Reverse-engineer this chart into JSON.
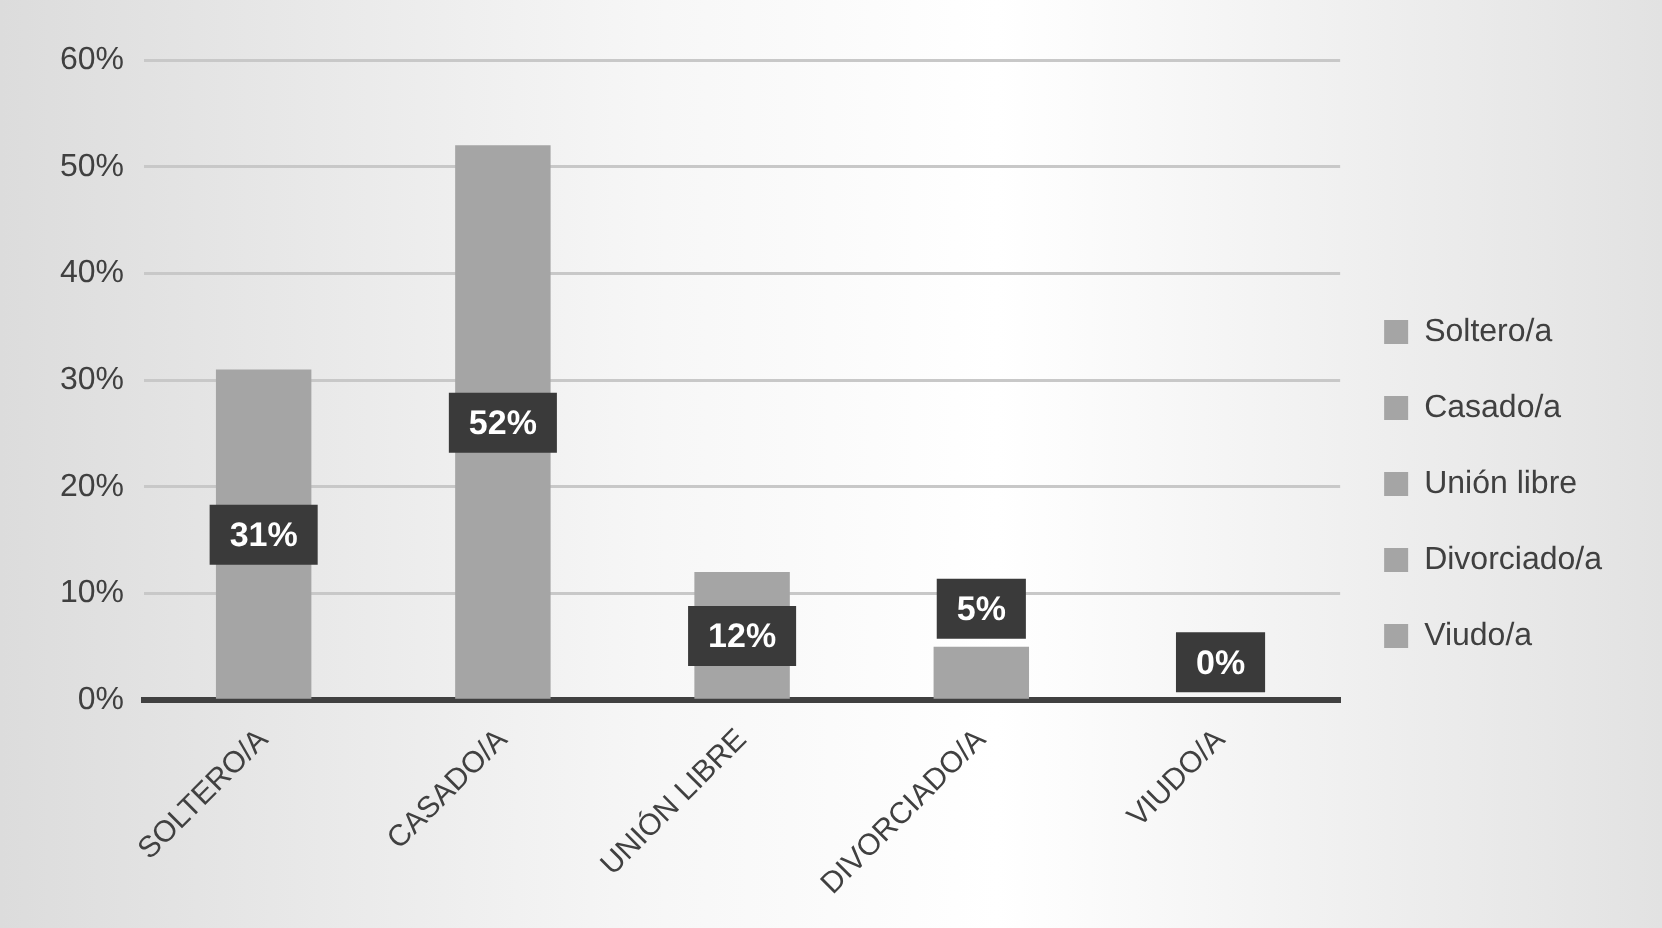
{
  "chart_data": {
    "type": "bar",
    "categories": [
      "SOLTERO/A",
      "CASADO/A",
      "UNIÓN LIBRE",
      "DIVORCIADO/A",
      "VIUDO/A"
    ],
    "series": [
      {
        "name": "Soltero/a",
        "color": "#a5a5a5",
        "values": [
          31,
          null,
          null,
          null,
          null
        ],
        "value_labels": [
          "31%",
          null,
          null,
          null,
          null
        ]
      },
      {
        "name": "Casado/a",
        "color": "#a5a5a5",
        "values": [
          null,
          52,
          null,
          null,
          null
        ],
        "value_labels": [
          null,
          "52%",
          null,
          null,
          null
        ]
      },
      {
        "name": "Unión libre",
        "color": "#a5a5a5",
        "values": [
          null,
          null,
          12,
          null,
          null
        ],
        "value_labels": [
          null,
          null,
          "12%",
          null,
          null
        ]
      },
      {
        "name": "Divorciado/a",
        "color": "#a5a5a5",
        "values": [
          null,
          null,
          null,
          5,
          null
        ],
        "value_labels": [
          null,
          null,
          null,
          "5%",
          null
        ]
      },
      {
        "name": "Viudo/a",
        "color": "#a5a5a5",
        "values": [
          null,
          null,
          null,
          null,
          0
        ],
        "value_labels": [
          null,
          null,
          null,
          null,
          "0%"
        ]
      }
    ],
    "ylim": [
      0,
      60
    ],
    "yticks": [
      {
        "value": 0,
        "label": "0%"
      },
      {
        "value": 10,
        "label": "10%"
      },
      {
        "value": 20,
        "label": "20%"
      },
      {
        "value": 30,
        "label": "30%"
      },
      {
        "value": 40,
        "label": "40%"
      },
      {
        "value": 50,
        "label": "50%"
      },
      {
        "value": 60,
        "label": "60%"
      }
    ],
    "grid": "y",
    "legend": "right"
  }
}
